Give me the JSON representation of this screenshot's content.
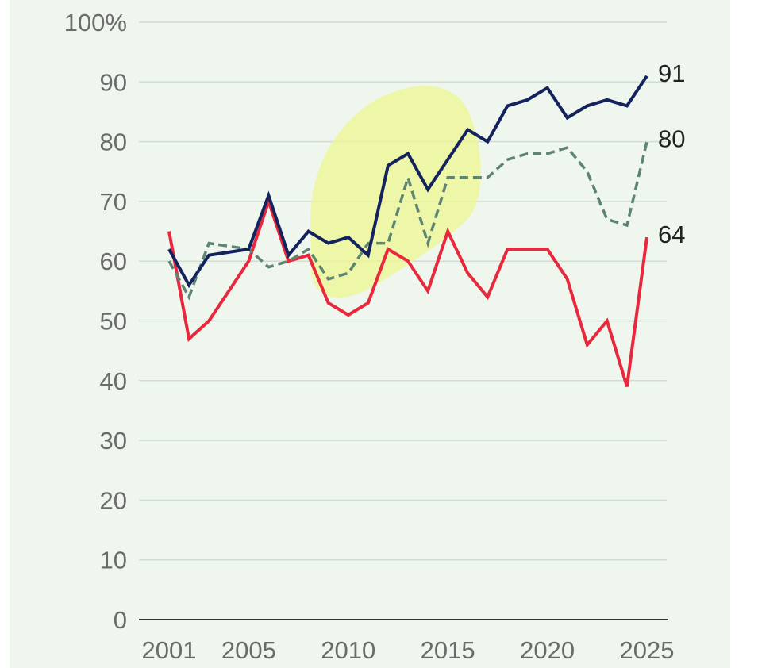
{
  "chart_data": {
    "type": "line",
    "ylabel_suffix": "100%",
    "ylim": [
      0,
      100
    ],
    "yticks": [
      "0",
      "10",
      "20",
      "30",
      "40",
      "50",
      "60",
      "70",
      "80",
      "90",
      "100%"
    ],
    "xticks": [
      "2001",
      "2005",
      "2010",
      "2015",
      "2020",
      "2025"
    ],
    "x": [
      2001,
      2002,
      2003,
      2004,
      2005,
      2006,
      2007,
      2008,
      2009,
      2010,
      2011,
      2012,
      2013,
      2014,
      2015,
      2016,
      2017,
      2018,
      2019,
      2020,
      2021,
      2022,
      2023,
      2024,
      2025
    ],
    "series": [
      {
        "color": "#14235e",
        "style": "solid",
        "values": [
          62,
          56,
          61,
          61.5,
          62,
          71,
          61,
          65,
          63,
          64,
          61,
          76,
          78,
          72,
          77,
          82,
          80,
          86,
          87,
          89,
          84,
          86,
          87,
          86,
          91
        ],
        "end_label": "91"
      },
      {
        "color": "#5e8472",
        "style": "dashed",
        "values": [
          60,
          54,
          63,
          62.5,
          62,
          59,
          60,
          62,
          57,
          58,
          63,
          63,
          74,
          63,
          74,
          74,
          74,
          77,
          78,
          78,
          79,
          75,
          67,
          66,
          80
        ],
        "end_label": "80"
      },
      {
        "color": "#e8293d",
        "style": "solid",
        "values": [
          65,
          47,
          50,
          55,
          60,
          70,
          60,
          61,
          53,
          51,
          53,
          62,
          60,
          55,
          65,
          58,
          54,
          62,
          62,
          62,
          57,
          46,
          50,
          39,
          64
        ],
        "end_label": "64"
      }
    ],
    "grid": true,
    "legend": "none",
    "highlight_color": "#eef590"
  }
}
